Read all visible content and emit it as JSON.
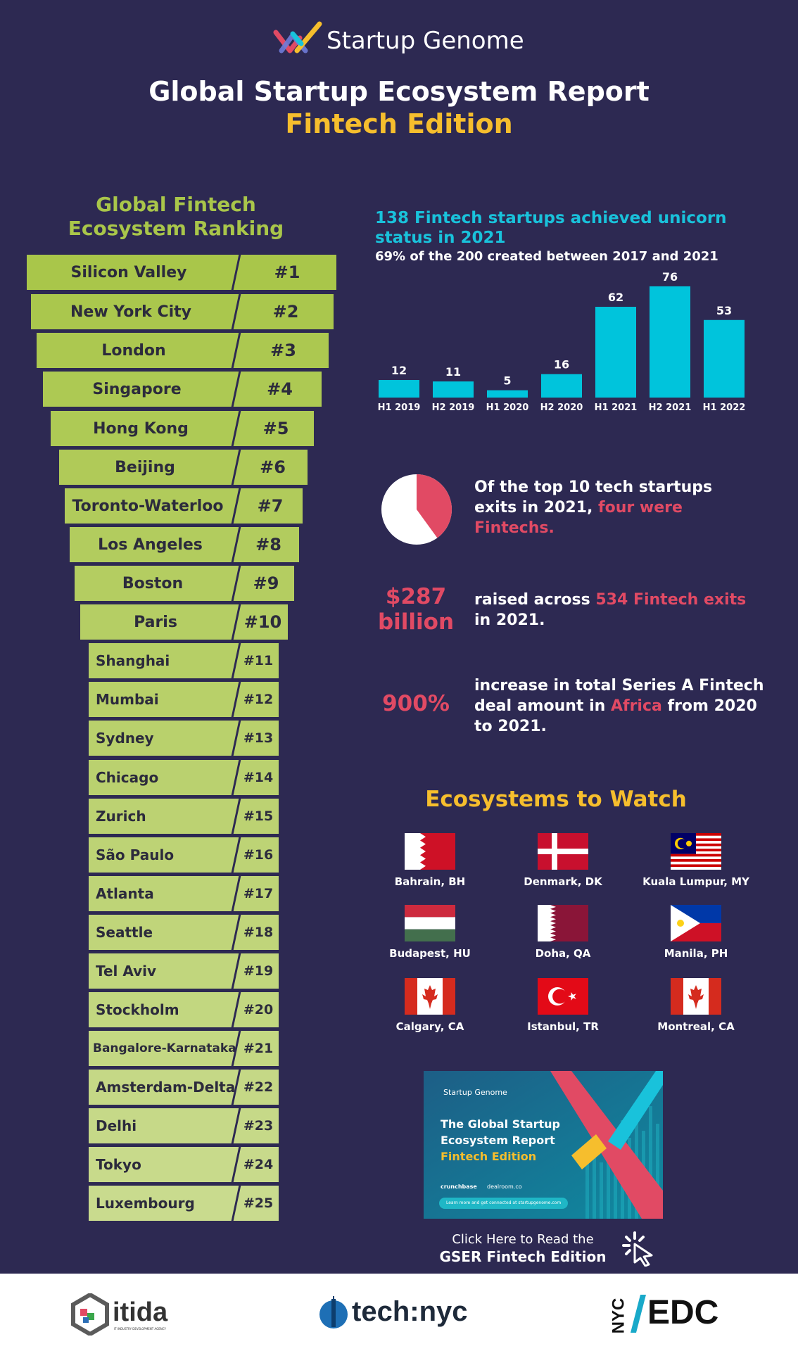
{
  "header": {
    "brand": "Startup Genome",
    "title": "Global Startup Ecosystem Report",
    "subtitle": "Fintech Edition"
  },
  "ranking": {
    "heading": "Global Fintech Ecosystem Ranking",
    "items": [
      {
        "name": "Silicon Valley",
        "rank": "#1"
      },
      {
        "name": "New York City",
        "rank": "#2"
      },
      {
        "name": "London",
        "rank": "#3"
      },
      {
        "name": "Singapore",
        "rank": "#4"
      },
      {
        "name": "Hong Kong",
        "rank": "#5"
      },
      {
        "name": "Beijing",
        "rank": "#6"
      },
      {
        "name": "Toronto-Waterloo",
        "rank": "#7"
      },
      {
        "name": "Los Angeles",
        "rank": "#8"
      },
      {
        "name": "Boston",
        "rank": "#9"
      },
      {
        "name": "Paris",
        "rank": "#10"
      },
      {
        "name": "Shanghai",
        "rank": "#11"
      },
      {
        "name": "Mumbai",
        "rank": "#12"
      },
      {
        "name": "Sydney",
        "rank": "#13"
      },
      {
        "name": "Chicago",
        "rank": "#14"
      },
      {
        "name": "Zurich",
        "rank": "#15"
      },
      {
        "name": "São Paulo",
        "rank": "#16"
      },
      {
        "name": "Atlanta",
        "rank": "#17"
      },
      {
        "name": "Seattle",
        "rank": "#18"
      },
      {
        "name": "Tel Aviv",
        "rank": "#19"
      },
      {
        "name": "Stockholm",
        "rank": "#20"
      },
      {
        "name": "Bangalore-Karnataka",
        "rank": "#21"
      },
      {
        "name": "Amsterdam-Delta",
        "rank": "#22"
      },
      {
        "name": "Delhi",
        "rank": "#23"
      },
      {
        "name": "Tokyo",
        "rank": "#24"
      },
      {
        "name": "Luxembourg",
        "rank": "#25"
      }
    ]
  },
  "unicorns": {
    "headline": "138 Fintech startups achieved unicorn status in 2021",
    "subline": "69% of the 200 created between 2017 and 2021"
  },
  "chart_data": {
    "type": "bar",
    "categories": [
      "H1 2019",
      "H2 2019",
      "H1 2020",
      "H2 2020",
      "H1 2021",
      "H2 2021",
      "H1 2022"
    ],
    "values": [
      12,
      11,
      5,
      16,
      62,
      76,
      53
    ],
    "ylim": [
      0,
      80
    ],
    "grid": false,
    "bar_color": "#00c4dc"
  },
  "stats": {
    "exits": {
      "text_a": "Of the top 10 tech startups exits in 2021, ",
      "highlight": "four were Fintechs.",
      "pie_fraction": 0.4
    },
    "raised": {
      "big_a": "$287",
      "big_b": "billion",
      "text_a": "raised across ",
      "highlight": "534 Fintech exits",
      "text_b": " in 2021."
    },
    "series_a": {
      "big": "900%",
      "text_a": "increase in total Series A Fintech deal amount in ",
      "highlight": "Africa",
      "text_b": " from 2020 to 2021."
    }
  },
  "ecosystems": {
    "heading": "Ecosystems to Watch",
    "items": [
      {
        "label": "Bahrain, BH",
        "flag": "bahrain-flag"
      },
      {
        "label": "Denmark, DK",
        "flag": "denmark-flag"
      },
      {
        "label": "Kuala Lumpur, MY",
        "flag": "malaysia-flag"
      },
      {
        "label": "Budapest, HU",
        "flag": "hungary-flag"
      },
      {
        "label": "Doha, QA",
        "flag": "qatar-flag"
      },
      {
        "label": "Manila, PH",
        "flag": "philippines-flag"
      },
      {
        "label": "Calgary, CA",
        "flag": "canada-flag"
      },
      {
        "label": "Istanbul, TR",
        "flag": "turkey-flag"
      },
      {
        "label": "Montreal, CA",
        "flag": "canada-flag"
      }
    ]
  },
  "report": {
    "brand": "Startup Genome",
    "title_a": "The Global Startup",
    "title_b": "Ecosystem Report",
    "title_c": "Fintech Edition",
    "partner_a": "crunchbase",
    "partner_b": "dealroom.co",
    "cta_small": "Learn more and get connected at startupgenome.com",
    "read_a": "Click Here to Read the",
    "read_b": "GSER Fintech Edition"
  },
  "footer": {
    "itida": "itida",
    "itida_sub": "IT INDUSTRY DEVELOPMENT AGENCY",
    "technyc": "tech:nyc",
    "nyc": "NYC",
    "edc": "EDC"
  },
  "colors": {
    "background": "#2d2952",
    "accent_yellow": "#f6be2d",
    "accent_cyan": "#19c2db",
    "accent_red": "#e14a64",
    "rank_green_top": "#a9c64a",
    "rank_green_bottom": "#c9db8e"
  }
}
